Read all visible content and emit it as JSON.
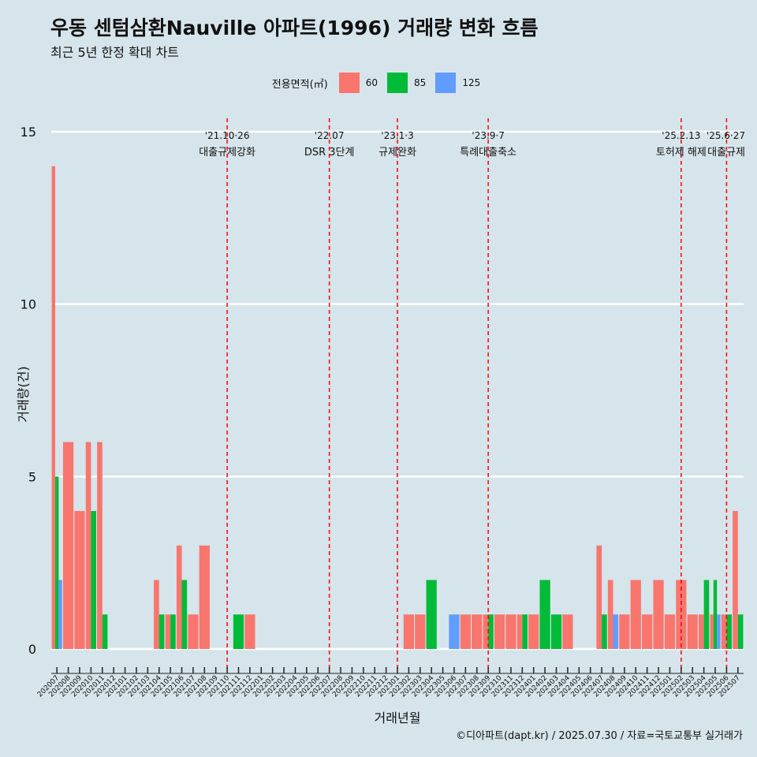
{
  "title": "우동 센텀삼환Nauville 아파트(1996) 거래량 변화 흐름",
  "subtitle": "최근 5년 한정 확대 차트",
  "caption": "©디아파트(dapt.kr) / 2025.07.30 / 자료=국토교통부 실거래가",
  "legend": {
    "title": "전용면적(㎡)",
    "items": [
      {
        "label": "60",
        "color": "#f8766d"
      },
      {
        "label": "85",
        "color": "#00ba38"
      },
      {
        "label": "125",
        "color": "#619cff"
      }
    ]
  },
  "chart_data": {
    "type": "bar",
    "xlabel": "거래년월",
    "ylabel": "거래량(건)",
    "ylim": [
      0,
      15
    ],
    "yticks": [
      0,
      5,
      10,
      15
    ],
    "grid": true,
    "legend_position": "top",
    "categories": [
      "202007",
      "202008",
      "202009",
      "202010",
      "202011",
      "202012",
      "202101",
      "202102",
      "202103",
      "202104",
      "202105",
      "202106",
      "202107",
      "202108",
      "202109",
      "202110",
      "202111",
      "202112",
      "202201",
      "202202",
      "202203",
      "202204",
      "202205",
      "202206",
      "202207",
      "202208",
      "202209",
      "202210",
      "202211",
      "202212",
      "202301",
      "202302",
      "202303",
      "202304",
      "202305",
      "202306",
      "202307",
      "202308",
      "202309",
      "202310",
      "202311",
      "202312",
      "202401",
      "202402",
      "202403",
      "202404",
      "202405",
      "202406",
      "202407",
      "202408",
      "202409",
      "202410",
      "202411",
      "202412",
      "202501",
      "202502",
      "202503",
      "202504",
      "202505",
      "202506",
      "202507"
    ],
    "series": [
      {
        "name": "60",
        "color": "#f8766d",
        "values": [
          14,
          6,
          4,
          6,
          6,
          0,
          0,
          0,
          0,
          2,
          1,
          3,
          1,
          3,
          0,
          0,
          0,
          1,
          0,
          0,
          0,
          0,
          0,
          0,
          0,
          0,
          0,
          0,
          0,
          0,
          0,
          1,
          1,
          0,
          0,
          0,
          1,
          1,
          1,
          1,
          1,
          1,
          1,
          0,
          0,
          1,
          0,
          0,
          3,
          2,
          1,
          2,
          1,
          2,
          1,
          2,
          1,
          1,
          1,
          1,
          4
        ]
      },
      {
        "name": "85",
        "color": "#00ba38",
        "values": [
          5,
          0,
          0,
          4,
          1,
          0,
          0,
          0,
          0,
          1,
          1,
          2,
          0,
          0,
          0,
          0,
          1,
          0,
          0,
          0,
          0,
          0,
          0,
          0,
          0,
          0,
          0,
          0,
          0,
          0,
          0,
          0,
          0,
          2,
          0,
          0,
          0,
          0,
          1,
          0,
          0,
          1,
          0,
          2,
          1,
          0,
          0,
          0,
          1,
          0,
          0,
          0,
          0,
          0,
          0,
          0,
          0,
          2,
          2,
          1,
          1
        ]
      },
      {
        "name": "125",
        "color": "#619cff",
        "values": [
          2,
          0,
          0,
          0,
          0,
          0,
          0,
          0,
          0,
          0,
          0,
          0,
          0,
          0,
          0,
          0,
          0,
          0,
          0,
          0,
          0,
          0,
          0,
          0,
          0,
          0,
          0,
          0,
          0,
          0,
          0,
          0,
          0,
          0,
          0,
          1,
          0,
          0,
          0,
          0,
          0,
          0,
          0,
          0,
          0,
          0,
          0,
          0,
          0,
          1,
          0,
          0,
          0,
          0,
          0,
          0,
          0,
          0,
          1,
          0,
          0
        ]
      }
    ],
    "events": [
      {
        "month": "202110",
        "date": "'21.10·26",
        "label": "대출규제강화"
      },
      {
        "month": "202207",
        "date": "'22.07",
        "label": "DSR 3단계"
      },
      {
        "month": "202301",
        "date": "'23.1·3",
        "label": "규제완화"
      },
      {
        "month": "202309",
        "date": "'23.9·7",
        "label": "특례대출축소"
      },
      {
        "month": "202502",
        "date": "'25.2.13",
        "label": "토허제 해제"
      },
      {
        "month": "202506",
        "date": "'25.6·27",
        "label": "대출규제"
      }
    ]
  }
}
